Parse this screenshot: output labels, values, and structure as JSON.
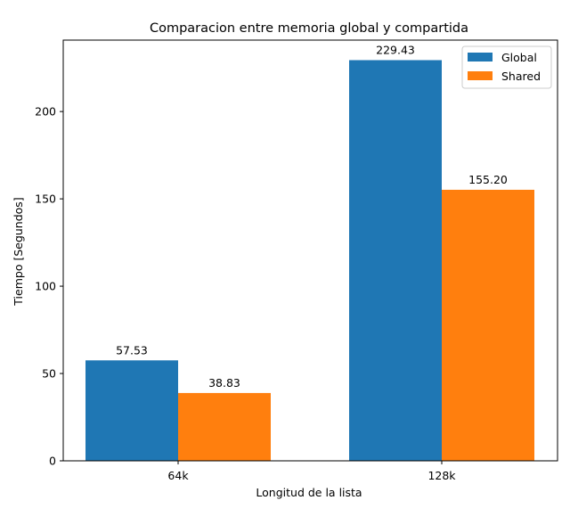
{
  "chart_data": {
    "type": "bar",
    "title": "Comparacion entre memoria global y compartida",
    "xlabel": "Longitud de la lista",
    "ylabel": "Tiempo [Segundos]",
    "categories": [
      "64k",
      "128k"
    ],
    "series": [
      {
        "name": "Global",
        "values": [
          57.53,
          229.43
        ],
        "labels": [
          "57.53",
          "229.43"
        ],
        "color": "#1f77b4"
      },
      {
        "name": "Shared",
        "values": [
          38.83,
          155.2
        ],
        "labels": [
          "38.83",
          "155.20"
        ],
        "color": "#ff7f0e"
      }
    ],
    "ylim": [
      0,
      240.9
    ],
    "yticks": [
      0,
      50,
      100,
      150,
      200
    ],
    "legend": "top-right",
    "grid": false
  }
}
